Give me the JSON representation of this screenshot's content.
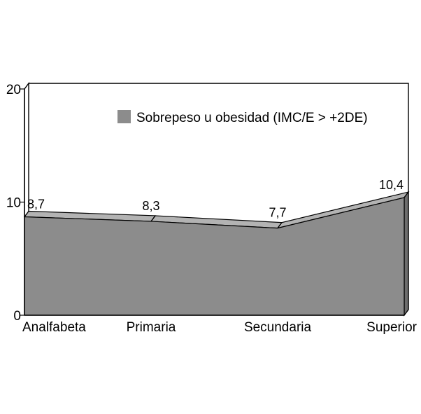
{
  "chart_data": {
    "type": "area",
    "categories": [
      "Analfabeta",
      "Primaria",
      "Secundaria",
      "Superior"
    ],
    "series": [
      {
        "name": "Sobrepeso u obesidad (IMC/E > +2DE)",
        "values": [
          8.7,
          8.3,
          7.7,
          10.4
        ]
      }
    ],
    "data_labels": [
      "8,7",
      "8,3",
      "7,7",
      "10,4"
    ],
    "y_ticks": [
      "0",
      "10",
      "20"
    ],
    "ylim": [
      0,
      20
    ],
    "grid": false,
    "legend_position": "top-right",
    "three_d": true,
    "colors": {
      "area_front": "#8c8c8c",
      "area_top": "#b3b3b3",
      "area_side": "#6e6e6e",
      "legend_swatch": "#8c8c8c",
      "frame": "#000000"
    }
  }
}
